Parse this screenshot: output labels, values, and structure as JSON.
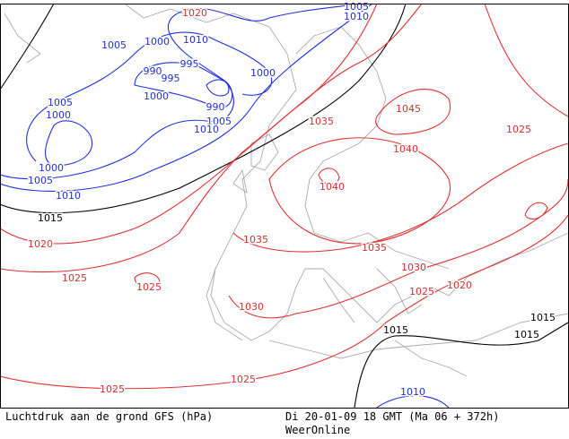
{
  "map": {
    "isobar_labels": [
      1020,
      1005,
      1010,
      1010,
      1000,
      1005,
      995,
      990,
      995,
      1000,
      1000,
      990,
      1005,
      1000,
      1005,
      1010,
      1000,
      1005,
      1010,
      1015,
      1020,
      1025,
      1025,
      1030,
      1035,
      1045,
      1025,
      1040,
      1040,
      1035,
      1035,
      1030,
      1025,
      1020,
      1015,
      1015,
      1015,
      1025,
      1025,
      1010
    ],
    "footer": {
      "caption": "Luchtdruk aan de grond GFS (hPa)",
      "valid_time": "Di 20-01-09 18 GMT (Ma 06 + 372h)",
      "source": "WeerOnline"
    }
  }
}
